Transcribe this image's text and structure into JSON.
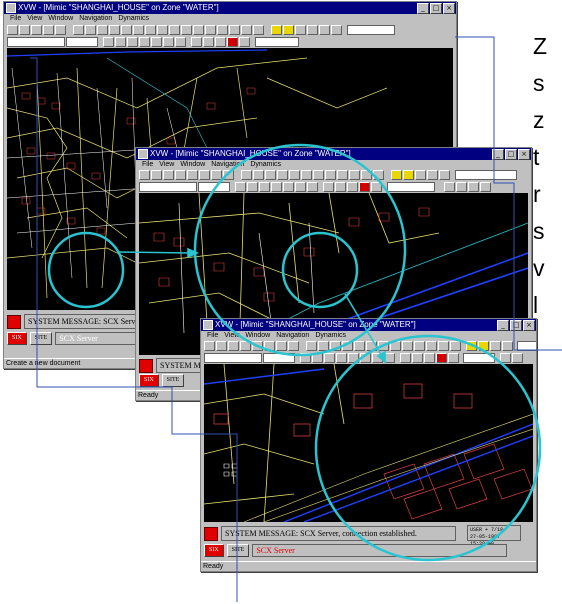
{
  "windows": {
    "back": {
      "title": "XVW - [Mimic \"SHANGHAI_HOUSE\" on Zone \"WATER\"]",
      "menu": [
        "File",
        "View",
        "Window",
        "Navigation",
        "Dynamics"
      ],
      "system_message": "SYSTEM MESSAGE: SCX Server, co",
      "buttons": [
        "SIX",
        "SITE"
      ],
      "server_label": "SCX Server",
      "status": "Create a new document"
    },
    "middle": {
      "title": "XVW - [Mimic \"SHANGHAI_HOUSE\" on Zone \"WATER\"]",
      "menu": [
        "File",
        "View",
        "Window",
        "Navigation",
        "Dynamics"
      ],
      "system_message": "SYSTEM MI",
      "buttons": [
        "SIX",
        "SITE"
      ],
      "status": "Ready"
    },
    "front": {
      "title": "XVW - [Mimic \"SHANGHAI_HOUSE\" on Zone \"WATER\"]",
      "menu": [
        "File",
        "View",
        "Window",
        "Navigation",
        "Dynamics"
      ],
      "system_message": "SYSTEM MESSAGE: SCX Server, connection established.",
      "buttons": [
        "SIX",
        "SITE"
      ],
      "server_label": "SCX Server",
      "clock_line1": "USER + 7/18",
      "clock_line2": "27-05-1997 15:29:40",
      "status": "Ready"
    }
  },
  "side_text": [
    "Z",
    "s",
    "z",
    "t",
    "r",
    "s",
    "v",
    "l"
  ],
  "colors": {
    "title_bar": "#000080",
    "window_face": "#c0c0c0",
    "zoom_circle": "#29c4d0",
    "map_background": "#000000",
    "map_roads": "#e8e070",
    "map_buildings": "#e04040",
    "map_water": "#2040ff"
  }
}
